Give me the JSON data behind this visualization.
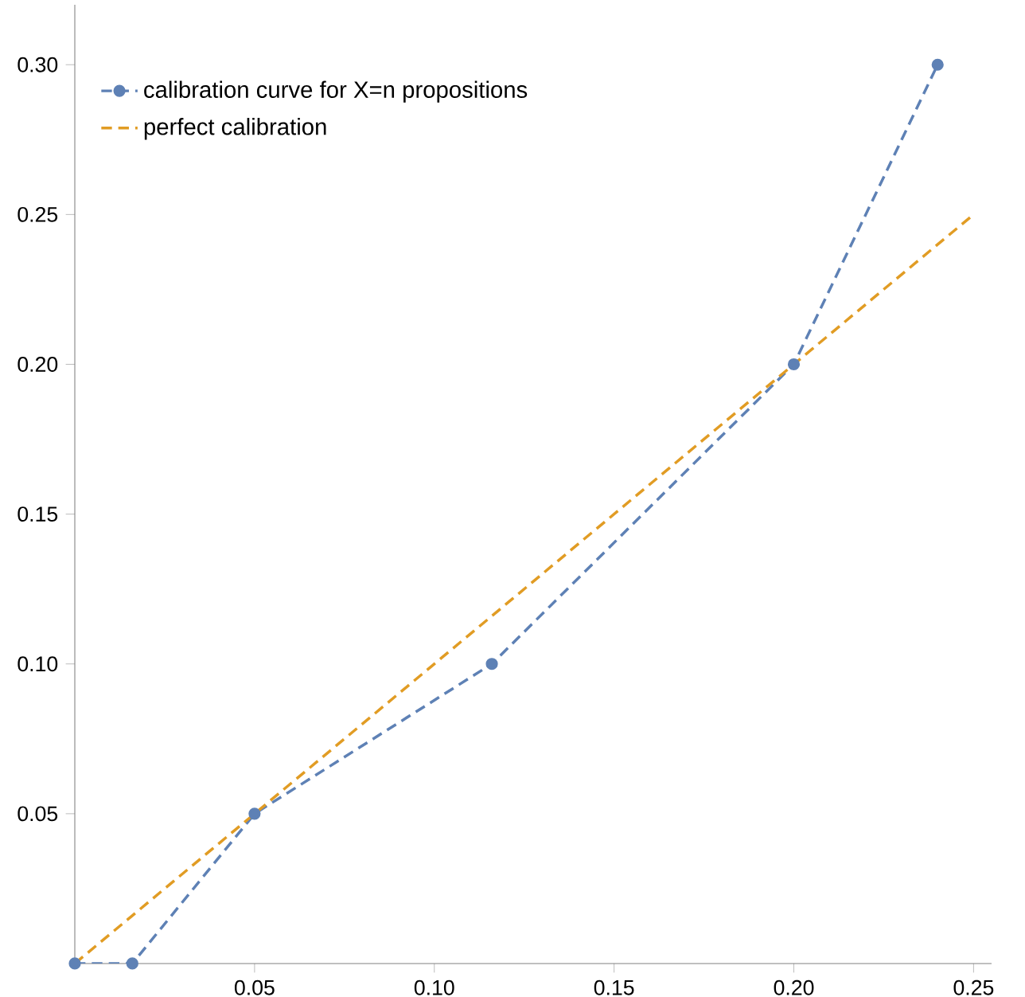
{
  "chart_data": {
    "type": "line",
    "series": [
      {
        "name": "calibration curve for X=n propositions",
        "color": "#5e81b5",
        "x": [
          0,
          0.016,
          0.05,
          0.116,
          0.2,
          0.24
        ],
        "values": [
          0,
          0,
          0.05,
          0.1,
          0.2,
          0.3
        ],
        "marker": "circle",
        "line_style": "dashed"
      },
      {
        "name": "perfect calibration",
        "color": "#e19c24",
        "x": [
          0,
          0.25
        ],
        "values": [
          0,
          0.25
        ],
        "marker": "none",
        "line_style": "dashed"
      }
    ],
    "xlim": [
      0,
      0.255
    ],
    "ylim": [
      0,
      0.32
    ],
    "xticks": [
      {
        "value": 0.05,
        "label": "0.05"
      },
      {
        "value": 0.1,
        "label": "0.10"
      },
      {
        "value": 0.15,
        "label": "0.15"
      },
      {
        "value": 0.2,
        "label": "0.20"
      },
      {
        "value": 0.25,
        "label": "0.25"
      }
    ],
    "yticks": [
      {
        "value": 0.05,
        "label": "0.05"
      },
      {
        "value": 0.1,
        "label": "0.10"
      },
      {
        "value": 0.15,
        "label": "0.15"
      },
      {
        "value": 0.2,
        "label": "0.20"
      },
      {
        "value": 0.25,
        "label": "0.25"
      },
      {
        "value": 0.3,
        "label": "0.30"
      }
    ],
    "legend": "top left",
    "grid": false
  }
}
